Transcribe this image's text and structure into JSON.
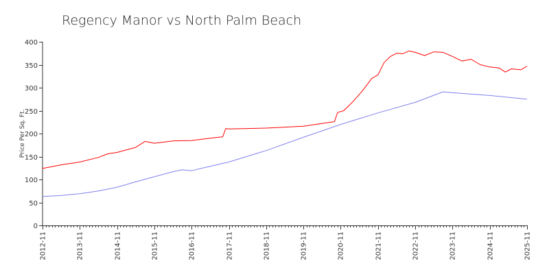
{
  "chart_data": {
    "type": "line",
    "title": "Regency Manor vs North Palm Beach",
    "xlabel": "",
    "ylabel": "Price Per Sq. Ft.",
    "ylim": [
      0,
      400
    ],
    "yticks": [
      0,
      50,
      100,
      150,
      200,
      250,
      300,
      350,
      400
    ],
    "xlim": [
      "2012-11",
      "2025-11"
    ],
    "xticks": [
      "2012-11",
      "2013-11",
      "2014-11",
      "2015-11",
      "2016-11",
      "2017-11",
      "2018-11",
      "2019-11",
      "2020-11",
      "2021-11",
      "2022-11",
      "2023-11",
      "2024-11",
      "2025-11"
    ],
    "grid": false,
    "legend": "none",
    "series": [
      {
        "color": "#ff0000",
        "points": [
          [
            "2012-11",
            124
          ],
          [
            "2013-05",
            132
          ],
          [
            "2013-11",
            138
          ],
          [
            "2014-05",
            148
          ],
          [
            "2014-08",
            156
          ],
          [
            "2014-11",
            159
          ],
          [
            "2015-05",
            170
          ],
          [
            "2015-08",
            183
          ],
          [
            "2015-11",
            179
          ],
          [
            "2016-05",
            184
          ],
          [
            "2016-11",
            185
          ],
          [
            "2017-05",
            190
          ],
          [
            "2017-09",
            193
          ],
          [
            "2017-10",
            211
          ],
          [
            "2017-11",
            210
          ],
          [
            "2018-05",
            211
          ],
          [
            "2018-11",
            212
          ],
          [
            "2019-05",
            214
          ],
          [
            "2019-11",
            216
          ],
          [
            "2020-05",
            222
          ],
          [
            "2020-09",
            226
          ],
          [
            "2020-10",
            246
          ],
          [
            "2020-12",
            250
          ],
          [
            "2021-03",
            270
          ],
          [
            "2021-06",
            293
          ],
          [
            "2021-09",
            320
          ],
          [
            "2021-11",
            328
          ],
          [
            "2022-01",
            355
          ],
          [
            "2022-03",
            368
          ],
          [
            "2022-05",
            375
          ],
          [
            "2022-07",
            374
          ],
          [
            "2022-09",
            380
          ],
          [
            "2022-11",
            377
          ],
          [
            "2023-02",
            370
          ],
          [
            "2023-05",
            378
          ],
          [
            "2023-08",
            377
          ],
          [
            "2023-11",
            368
          ],
          [
            "2024-02",
            358
          ],
          [
            "2024-05",
            362
          ],
          [
            "2024-08",
            350
          ],
          [
            "2024-11",
            345
          ],
          [
            "2025-02",
            343
          ],
          [
            "2025-04",
            334
          ],
          [
            "2025-06",
            341
          ],
          [
            "2025-09",
            339
          ],
          [
            "2025-11",
            347
          ]
        ]
      },
      {
        "color": "#8080ee",
        "points": [
          [
            "2012-11",
            63
          ],
          [
            "2013-05",
            65
          ],
          [
            "2013-11",
            69
          ],
          [
            "2014-05",
            75
          ],
          [
            "2014-11",
            83
          ],
          [
            "2015-05",
            95
          ],
          [
            "2015-11",
            106
          ],
          [
            "2016-05",
            117
          ],
          [
            "2016-08",
            121
          ],
          [
            "2016-11",
            119
          ],
          [
            "2017-02",
            124
          ],
          [
            "2017-11",
            138
          ],
          [
            "2018-11",
            163
          ],
          [
            "2019-11",
            192
          ],
          [
            "2020-11",
            220
          ],
          [
            "2021-11",
            245
          ],
          [
            "2022-11",
            268
          ],
          [
            "2023-08",
            291
          ],
          [
            "2023-11",
            289
          ],
          [
            "2024-11",
            283
          ],
          [
            "2025-11",
            275
          ]
        ]
      }
    ]
  }
}
